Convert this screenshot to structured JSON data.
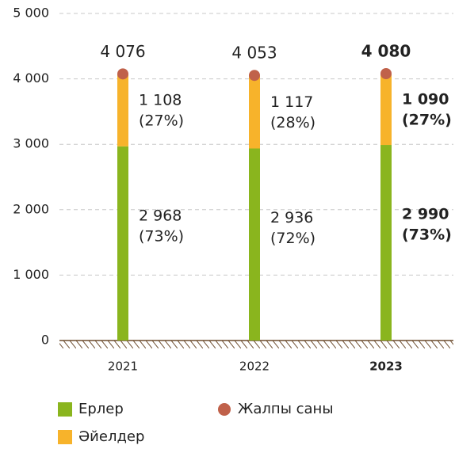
{
  "chart_data": {
    "type": "stacked_bar",
    "categories": [
      "2021",
      "2022",
      "2023"
    ],
    "highlight_index": 2,
    "series": [
      {
        "name": "Ерлер",
        "color": "#8ab51e",
        "values": [
          2968,
          2936,
          2990
        ],
        "value_labels": [
          "2 968",
          "2 936",
          "2 990"
        ],
        "share_labels": [
          "(73%)",
          "(72%)",
          "(73%)"
        ]
      },
      {
        "name": "Әйелдер",
        "color": "#f7b32b",
        "values": [
          1108,
          1117,
          1090
        ],
        "value_labels": [
          "1 108",
          "1 117",
          "1 090"
        ],
        "share_labels": [
          "(27%)",
          "(28%)",
          "(27%)"
        ]
      }
    ],
    "totals": {
      "name": "Жалпы саны",
      "color": "#c0614a",
      "values": [
        4076,
        4053,
        4080
      ],
      "value_labels": [
        "4 076",
        "4 053",
        "4 080"
      ]
    },
    "ylim": [
      0,
      5000
    ],
    "yticks": [
      0,
      {
        "value": 1000,
        "label": "1 000"
      },
      {
        "value": 2000,
        "label": "2 000"
      },
      {
        "value": 3000,
        "label": "3 000"
      },
      {
        "value": 4000,
        "label": "4 000"
      },
      {
        "value": 5000,
        "label": "5 000"
      }
    ],
    "grid": true
  }
}
